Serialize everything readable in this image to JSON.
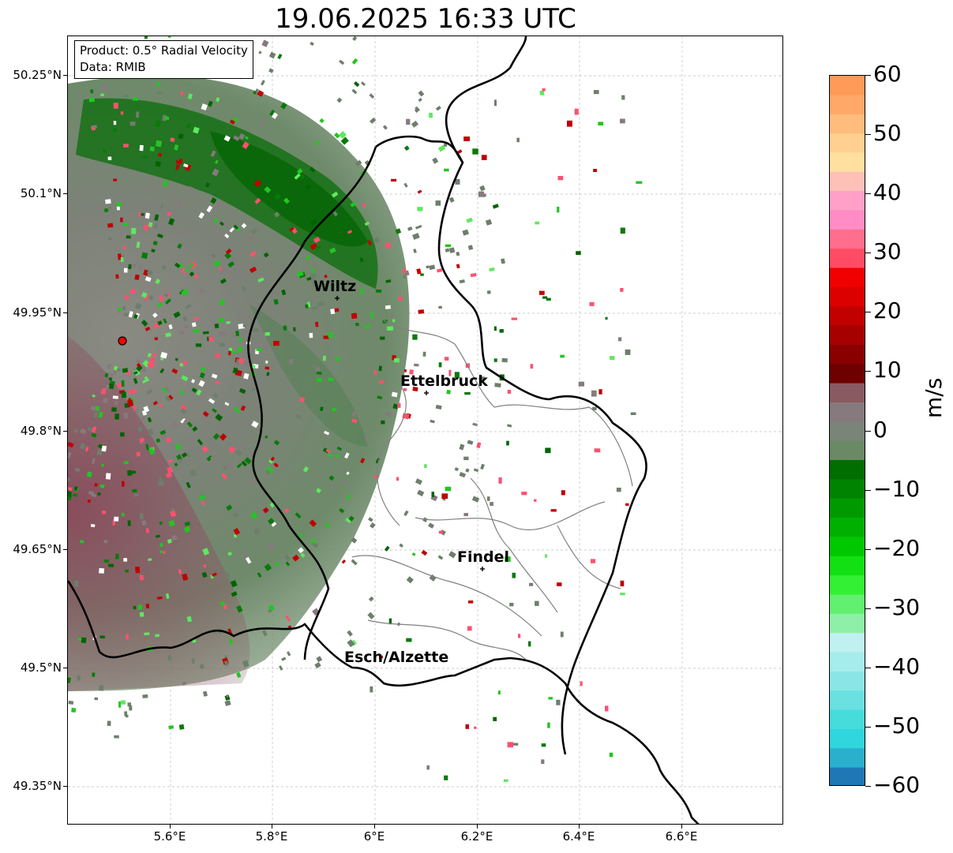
{
  "title": "19.06.2025 16:33 UTC",
  "info_box": {
    "product": "Product: 0.5° Radial Velocity",
    "data": "Data: RMIB"
  },
  "lat_ticks": [
    "50.25°N",
    "50.1°N",
    "49.95°N",
    "49.8°N",
    "49.65°N",
    "49.5°N",
    "49.35°N"
  ],
  "lon_ticks": [
    "5.6°E",
    "5.8°E",
    "6°E",
    "6.2°E",
    "6.4°E",
    "6.6°E"
  ],
  "cities": {
    "wiltz": "Wiltz",
    "ettelbruck": "Ettelbruck",
    "findel": "Findel",
    "esch": "Esch/Alzette"
  },
  "colorbar": {
    "unit": "m/s",
    "tick_labels": [
      "60",
      "50",
      "40",
      "30",
      "20",
      "10",
      "0",
      "−10",
      "−20",
      "−30",
      "−40",
      "−50",
      "−60"
    ],
    "min": -60,
    "max": 60,
    "colors": [
      "#1f78b4",
      "#2ab0cc",
      "#2fd6dc",
      "#46dcdc",
      "#6ae0e0",
      "#8ae6e6",
      "#a6ecec",
      "#c0f0f0",
      "#8ef0a8",
      "#62f070",
      "#34f034",
      "#12e012",
      "#00c800",
      "#00b000",
      "#009a00",
      "#008400",
      "#006e00",
      "#6a8a66",
      "#7a8478",
      "#867a7e",
      "#8a5a62",
      "#6e0000",
      "#8a0000",
      "#a60000",
      "#c20000",
      "#dc0000",
      "#f00000",
      "#ff4c64",
      "#ff6e8c",
      "#ff8cc4",
      "#ffa0c8",
      "#ffc0b8",
      "#ffe0a0",
      "#ffd090",
      "#ffbc7c",
      "#ffa868",
      "#ff9a58"
    ],
    "colors_comment_free": true
  },
  "radar_site_color": "#ff0000",
  "border_color": "#000000",
  "canton_border_color": "#808080"
}
